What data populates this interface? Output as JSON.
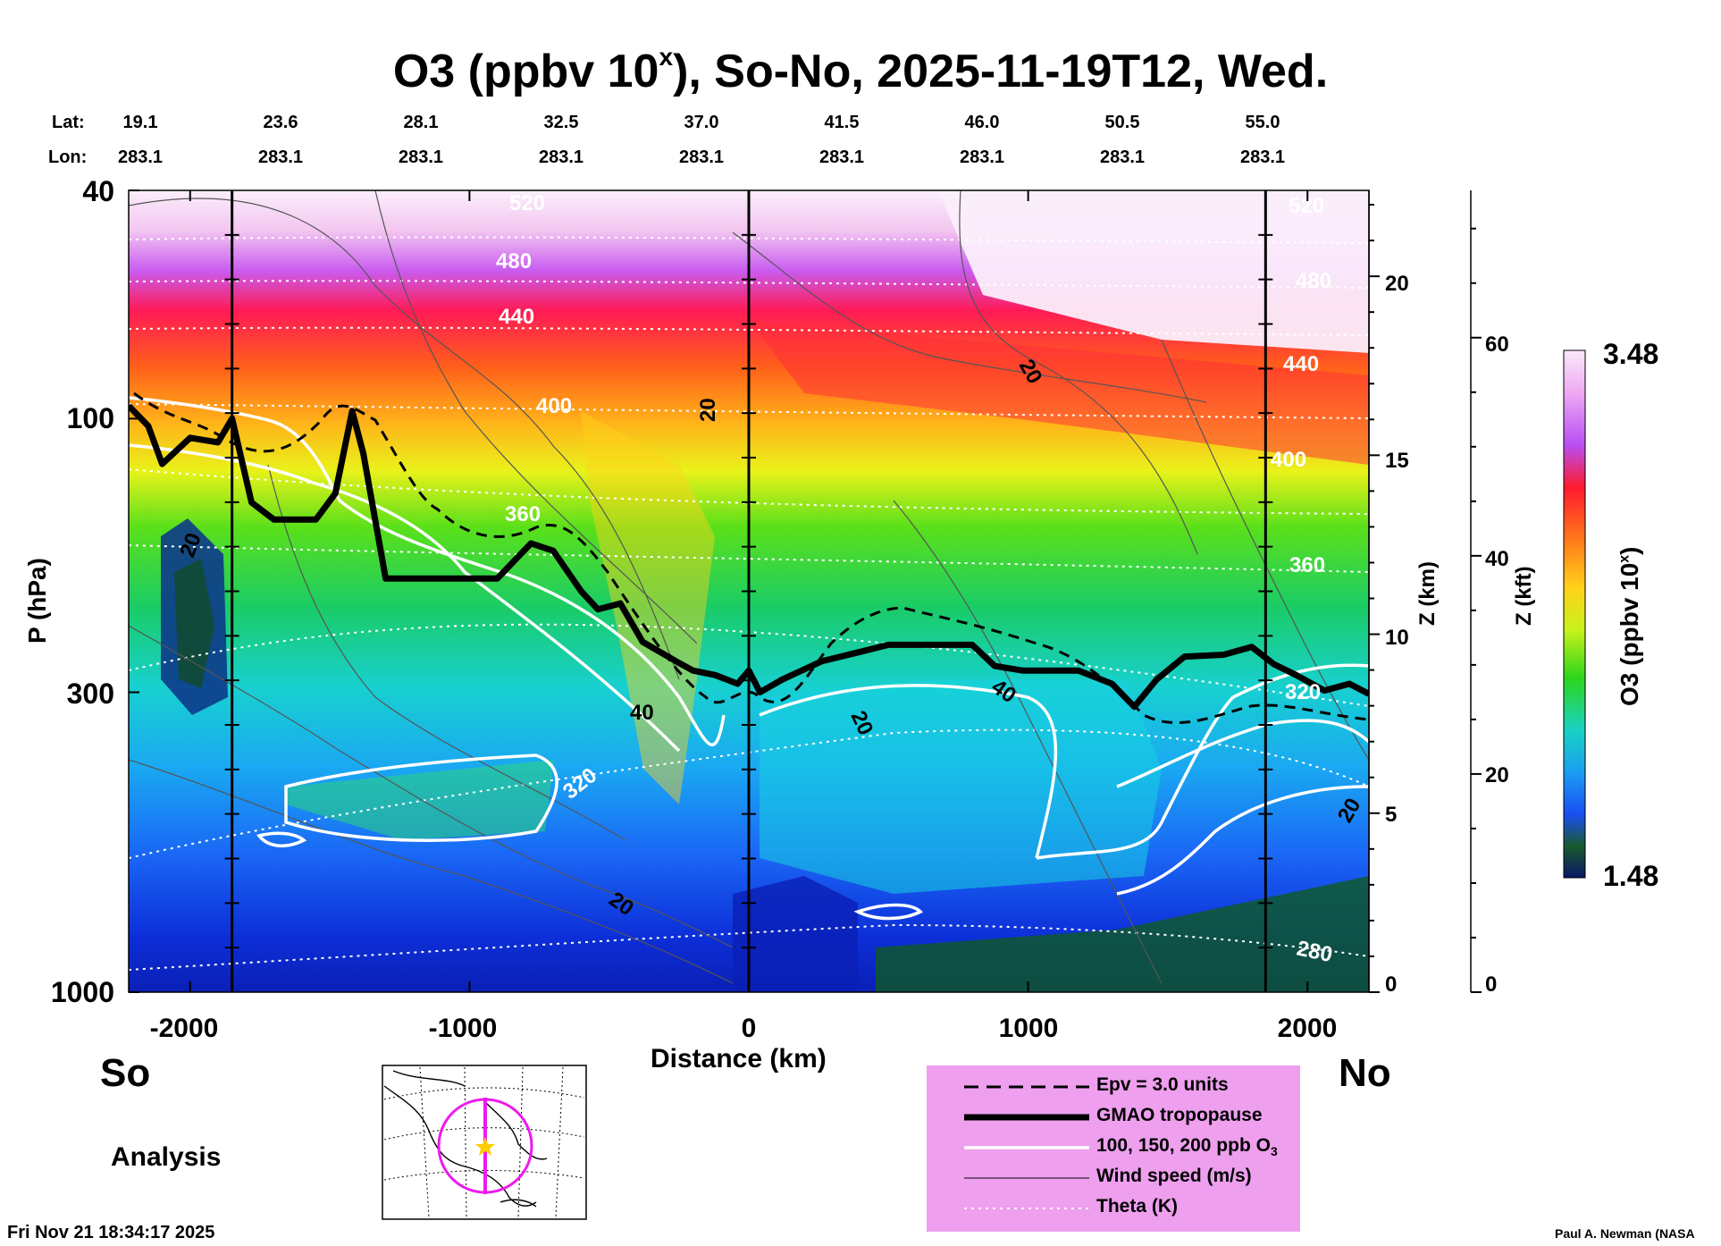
{
  "title": {
    "text": "O3 (ppbv 10",
    "sup": "x",
    "rest": "), So-No, 2025-11-19T12, Wed."
  },
  "header": {
    "lat_label": "Lat:",
    "lon_label": "Lon:",
    "lats": [
      "19.1",
      "23.6",
      "28.1",
      "32.5",
      "37.0",
      "41.5",
      "46.0",
      "50.5",
      "55.0"
    ],
    "lons": [
      "283.1",
      "283.1",
      "283.1",
      "283.1",
      "283.1",
      "283.1",
      "283.1",
      "283.1",
      "283.1"
    ]
  },
  "chart_data": {
    "type": "heatmap",
    "title": "O3 (ppbv 10^x), So-No, 2025-11-19T12, Wed.",
    "xlabel": "Distance (km)",
    "ylabel": "P (hPa)",
    "x_ticks": [
      "-2000",
      "-1000",
      "0",
      "1000",
      "2000"
    ],
    "x_tick_values": [
      -2000,
      -1000,
      0,
      1000,
      2000
    ],
    "xlim": [
      -2220,
      2220
    ],
    "y_ticks": [
      "40",
      "100",
      "300",
      "1000"
    ],
    "y_tick_values": [
      40,
      100,
      300,
      1000
    ],
    "ylim": [
      1000,
      40
    ],
    "z_axis_label": "Z (km)",
    "z_ticks": [
      "0",
      "5",
      "10",
      "15",
      "20"
    ],
    "kft_axis_label": "Z (kft)",
    "kft_ticks": [
      "0",
      "20",
      "40",
      "60"
    ],
    "left_end_label": "So",
    "right_end_label": "No",
    "colorbar": {
      "label": "O3 (ppbv 10",
      "label_sup": "x",
      "label_end": ")",
      "min": "1.48",
      "max": "3.48"
    },
    "vertical_markers_km": [
      -1850,
      0,
      1850
    ],
    "theta_labels": [
      "520",
      "480",
      "440",
      "400",
      "360",
      "320",
      "280",
      "320",
      "360",
      "400",
      "440",
      "480",
      "520"
    ],
    "wind_labels": [
      "20",
      "20",
      "40",
      "20",
      "20",
      "40",
      "20",
      "20"
    ],
    "tropopause_hpa": [
      [
        -2220,
        95
      ],
      [
        -2150,
        103
      ],
      [
        -2100,
        120
      ],
      [
        -2000,
        108
      ],
      [
        -1900,
        110
      ],
      [
        -1850,
        100
      ],
      [
        -1780,
        140
      ],
      [
        -1700,
        150
      ],
      [
        -1550,
        150
      ],
      [
        -1480,
        135
      ],
      [
        -1420,
        97
      ],
      [
        -1380,
        115
      ],
      [
        -1300,
        190
      ],
      [
        -1200,
        190
      ],
      [
        -900,
        190
      ],
      [
        -780,
        165
      ],
      [
        -700,
        170
      ],
      [
        -600,
        200
      ],
      [
        -540,
        215
      ],
      [
        -460,
        210
      ],
      [
        -380,
        245
      ],
      [
        -260,
        265
      ],
      [
        -200,
        275
      ],
      [
        -120,
        280
      ],
      [
        -40,
        290
      ],
      [
        0,
        275
      ],
      [
        40,
        300
      ],
      [
        120,
        285
      ],
      [
        260,
        265
      ],
      [
        400,
        255
      ],
      [
        500,
        248
      ],
      [
        600,
        248
      ],
      [
        800,
        248
      ],
      [
        880,
        270
      ],
      [
        980,
        275
      ],
      [
        1180,
        275
      ],
      [
        1300,
        290
      ],
      [
        1380,
        318
      ],
      [
        1460,
        285
      ],
      [
        1560,
        260
      ],
      [
        1700,
        258
      ],
      [
        1800,
        250
      ],
      [
        1880,
        268
      ],
      [
        1960,
        280
      ],
      [
        2060,
        298
      ],
      [
        2150,
        290
      ],
      [
        2220,
        302
      ]
    ]
  },
  "legend": {
    "items": [
      "Epv = 3.0 units",
      "GMAO tropopause",
      "100, 150, 200 ppb O",
      "Wind speed (m/s)",
      "Theta (K)"
    ],
    "o3_sub": "3"
  },
  "footer": {
    "analysis": "Analysis",
    "timestamp": "Fri Nov 21 18:34:17 2025",
    "credit": "Paul A. Newman (NASA"
  }
}
